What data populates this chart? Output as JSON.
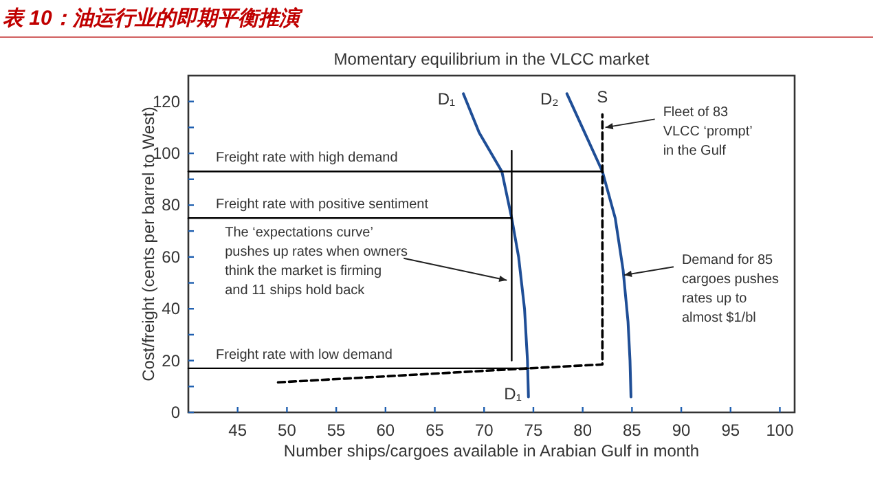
{
  "chart_data": {
    "type": "line",
    "title": "表 10：油运行业的即期平衡推演",
    "subtitle": "Momentary equilibrium in the VLCC market",
    "xlabel": "Number ships/cargoes available in Arabian Gulf in month",
    "ylabel": "Cost/freight (cents per barrel to West)",
    "xlim": [
      40,
      101.5
    ],
    "ylim": [
      0,
      130
    ],
    "xticks": [
      45,
      50,
      55,
      60,
      65,
      70,
      75,
      80,
      85,
      90,
      95,
      100
    ],
    "yticks": [
      0,
      {
        "value": 10,
        "label": null
      },
      20,
      {
        "value": 30,
        "label": null
      },
      40,
      {
        "value": 50,
        "label": null
      },
      60,
      {
        "value": 70,
        "label": null
      },
      80,
      {
        "value": 90,
        "label": null
      },
      100,
      {
        "value": 110,
        "label": null
      },
      120
    ],
    "series": [
      {
        "name": "D₁",
        "color": "#1f4e96",
        "line_style": "solid",
        "x": [
          67.9,
          69.5,
          71.8,
          72.8,
          73.5,
          74.1,
          74.4,
          74.5
        ],
        "values": [
          123,
          108,
          93,
          75,
          60,
          40,
          20,
          6
        ]
      },
      {
        "name": "D₂",
        "color": "#1f4e96",
        "line_style": "solid",
        "x": [
          78.4,
          80.2,
          82,
          83.3,
          84.1,
          84.6,
          84.8,
          84.9
        ],
        "values": [
          123,
          108,
          93,
          75,
          55,
          35,
          20,
          6
        ]
      },
      {
        "name": "S",
        "color": "#000000",
        "line_style": "dashed",
        "x": [
          49.1,
          74.5,
          82,
          82,
          82
        ],
        "values": [
          11.6,
          17,
          18.5,
          93,
          115
        ]
      },
      {
        "name": "Freight rate with high demand",
        "color": "#000000",
        "line_style": "solid",
        "x": [
          40,
          82
        ],
        "values": [
          93,
          93
        ]
      },
      {
        "name": "Freight rate with positive sentiment",
        "color": "#000000",
        "line_style": "solid",
        "x": [
          40,
          72.8
        ],
        "values": [
          75,
          75
        ]
      },
      {
        "name": "Freight rate with low demand",
        "color": "#000000",
        "line_style": "solid",
        "x": [
          40,
          74.5
        ],
        "values": [
          17,
          17
        ]
      },
      {
        "color": "#000000",
        "line_style": "solid",
        "x": [
          72.8,
          72.8
        ],
        "values": [
          20,
          101
        ]
      }
    ],
    "annotations": [
      {
        "text": "Fleet of 83\nVLCC ‘prompt’\nin the Gulf",
        "x": 82.3,
        "y": 110
      },
      {
        "text": "The ‘expectations curve’\npushes up rates when owners\nthink the market is firming\nand 11 ships hold back",
        "x": 72.3,
        "y": 51
      },
      {
        "text": "Demand for 85\ncargoes pushes\nrates up to\nalmost $1/bl",
        "x": 84.2,
        "y": 53
      },
      {
        "text": "D₁",
        "x": 74.5,
        "y": 6
      }
    ]
  }
}
